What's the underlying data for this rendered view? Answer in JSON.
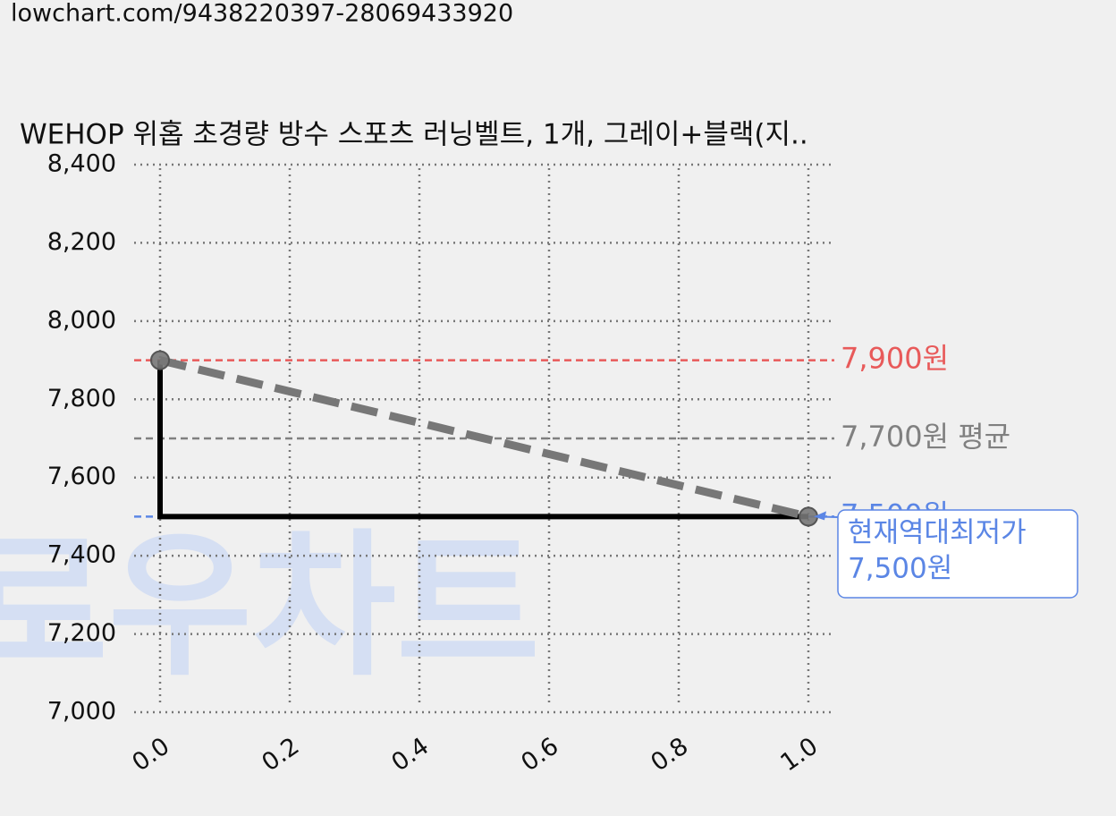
{
  "chart_data": {
    "type": "line",
    "source_url": "lowchart.com/9438220397-28069433920",
    "title": "WEHOP 위홉 초경량 방수 스포츠 러닝벨트, 1개, 그레이+블랙(지..",
    "watermark": "로우차트",
    "x": [
      0,
      1
    ],
    "series": [
      {
        "color": "#000000",
        "step": "pre",
        "values": [
          7900,
          7500
        ]
      },
      {
        "color": "#777777",
        "dashed": true,
        "markers": true,
        "values": [
          7900,
          7500
        ]
      }
    ],
    "hlines": [
      {
        "value": 7900,
        "label": "7,900원",
        "color": "#e85a5a"
      },
      {
        "value": 7700,
        "label": "7,700원 평균",
        "color": "#808080"
      },
      {
        "value": 7500,
        "label": "7,500원",
        "color": "#5b86e5"
      }
    ],
    "annotation": {
      "lines": [
        "현재역대최저가",
        "7,500원"
      ],
      "x": 1,
      "y": 7500,
      "color": "#5b86e5"
    },
    "xlim": [
      0,
      1
    ],
    "xticks": [
      {
        "value": 0,
        "label": "0.0"
      },
      0.2,
      0.4,
      0.6,
      0.8,
      {
        "value": 1,
        "label": "1.0"
      }
    ],
    "ylim": [
      7000,
      8400
    ],
    "yticks": [
      {
        "value": 7000,
        "label": "7,000"
      },
      {
        "value": 7200,
        "label": "7,200"
      },
      {
        "value": 7400,
        "label": "7,400"
      },
      {
        "value": 7600,
        "label": "7,600"
      },
      {
        "value": 7800,
        "label": "7,800"
      },
      {
        "value": 8000,
        "label": "8,000"
      },
      {
        "value": 8200,
        "label": "8,200"
      },
      {
        "value": 8400,
        "label": "8,400"
      }
    ],
    "grid": true
  }
}
